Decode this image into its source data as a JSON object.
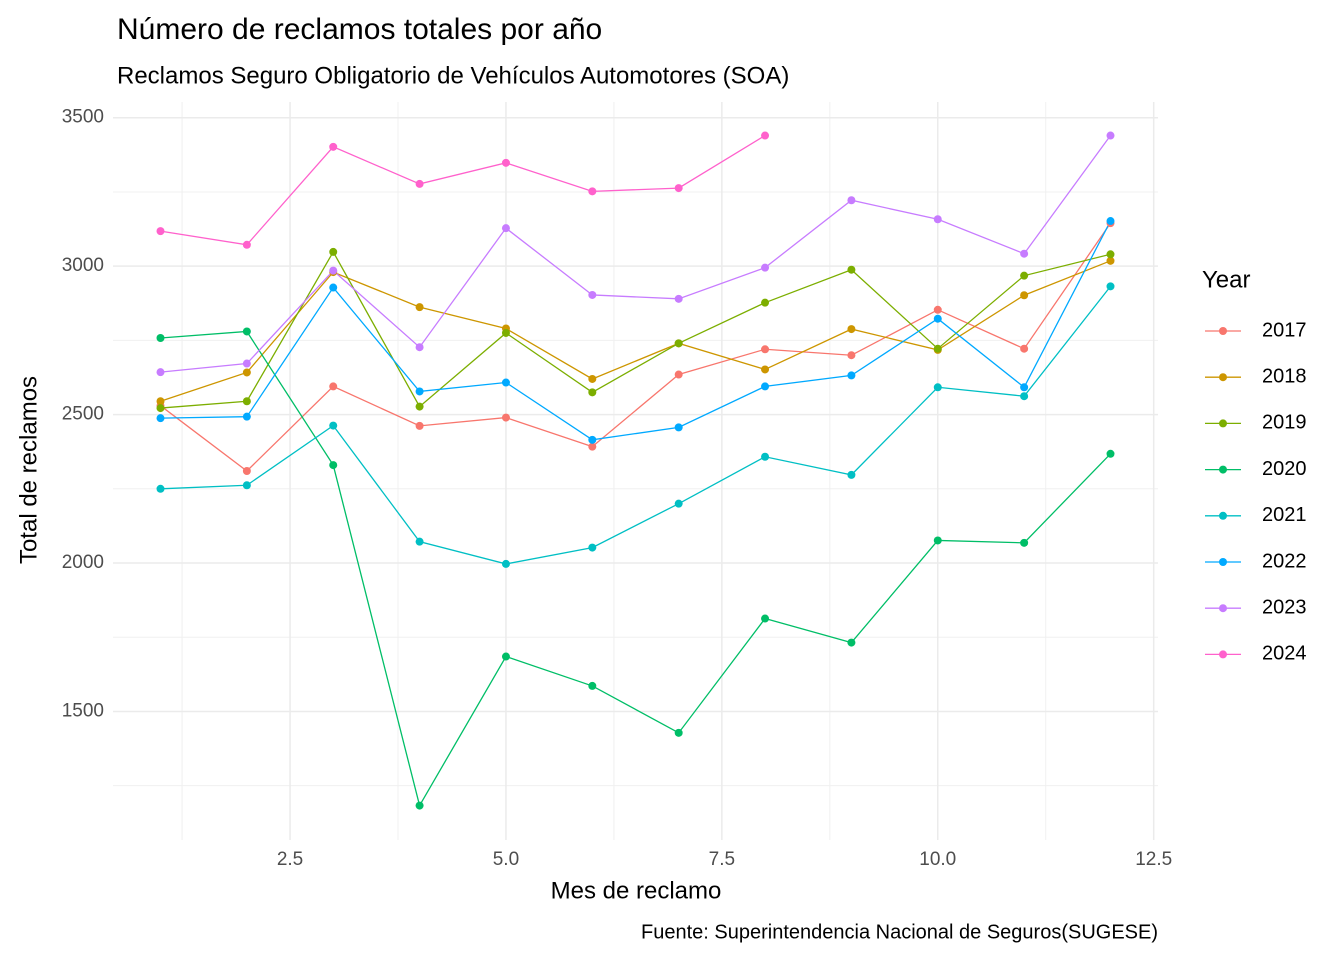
{
  "chart_data": {
    "type": "line",
    "title": "Número de reclamos totales por año",
    "subtitle": "Reclamos Seguro Obligatorio de Vehículos Automotores (SOA)",
    "x_label": "Mes de reclamo",
    "y_label": "Total de reclamos",
    "caption": "Fuente: Superintendencia Nacional de Seguros(SUGESE)",
    "legend_title": "Year",
    "x": [
      1,
      2,
      3,
      4,
      5,
      6,
      7,
      8,
      9,
      10,
      11,
      12
    ],
    "series": [
      {
        "name": "2017",
        "color": "#F8766D",
        "values": [
          2530,
          2310,
          2595,
          2462,
          2490,
          2392,
          2635,
          2720,
          2700,
          2853,
          2722,
          3145
        ]
      },
      {
        "name": "2018",
        "color": "#CD9600",
        "values": [
          2545,
          2642,
          2980,
          2862,
          2790,
          2620,
          2740,
          2652,
          2788,
          2718,
          2902,
          3018
        ]
      },
      {
        "name": "2019",
        "color": "#7CAE00",
        "values": [
          2522,
          2545,
          3048,
          2527,
          2775,
          2575,
          2740,
          2877,
          2988,
          2722,
          2968,
          3040
        ]
      },
      {
        "name": "2020",
        "color": "#00BE67",
        "values": [
          2758,
          2780,
          2330,
          1183,
          1685,
          1586,
          1428,
          1813,
          1732,
          2076,
          2068,
          2368
        ]
      },
      {
        "name": "2021",
        "color": "#00BFC4",
        "values": [
          2250,
          2262,
          2463,
          2072,
          1997,
          2052,
          2200,
          2358,
          2297,
          2592,
          2562,
          2932
        ]
      },
      {
        "name": "2022",
        "color": "#00A9FF",
        "values": [
          2488,
          2493,
          2928,
          2578,
          2608,
          2415,
          2457,
          2595,
          2632,
          2823,
          2592,
          3152
        ]
      },
      {
        "name": "2023",
        "color": "#C77CFF",
        "values": [
          2643,
          2672,
          2985,
          2727,
          3128,
          2903,
          2890,
          2995,
          3222,
          3158,
          3042,
          3440
        ]
      },
      {
        "name": "2024",
        "color": "#FF61CC",
        "values": [
          3118,
          3072,
          3402,
          3277,
          3348,
          3252,
          3263,
          3440,
          null,
          null,
          null,
          null
        ]
      }
    ],
    "xlim": [
      0.45,
      12.55
    ],
    "ylim": [
      1067,
      3553
    ],
    "xticks": [
      2.5,
      {
        "value": 5,
        "label": "5.0"
      },
      7.5,
      {
        "value": 10,
        "label": "10.0"
      },
      12.5
    ],
    "yticks": [
      1500,
      2000,
      2500,
      3000,
      3500
    ],
    "x_minor_ticks": [
      1.25,
      3.75,
      6.25,
      8.75,
      11.25
    ],
    "y_minor_ticks": [
      1250,
      1750,
      2250,
      2750,
      3250
    ],
    "grid": true,
    "legend_position": "right"
  }
}
